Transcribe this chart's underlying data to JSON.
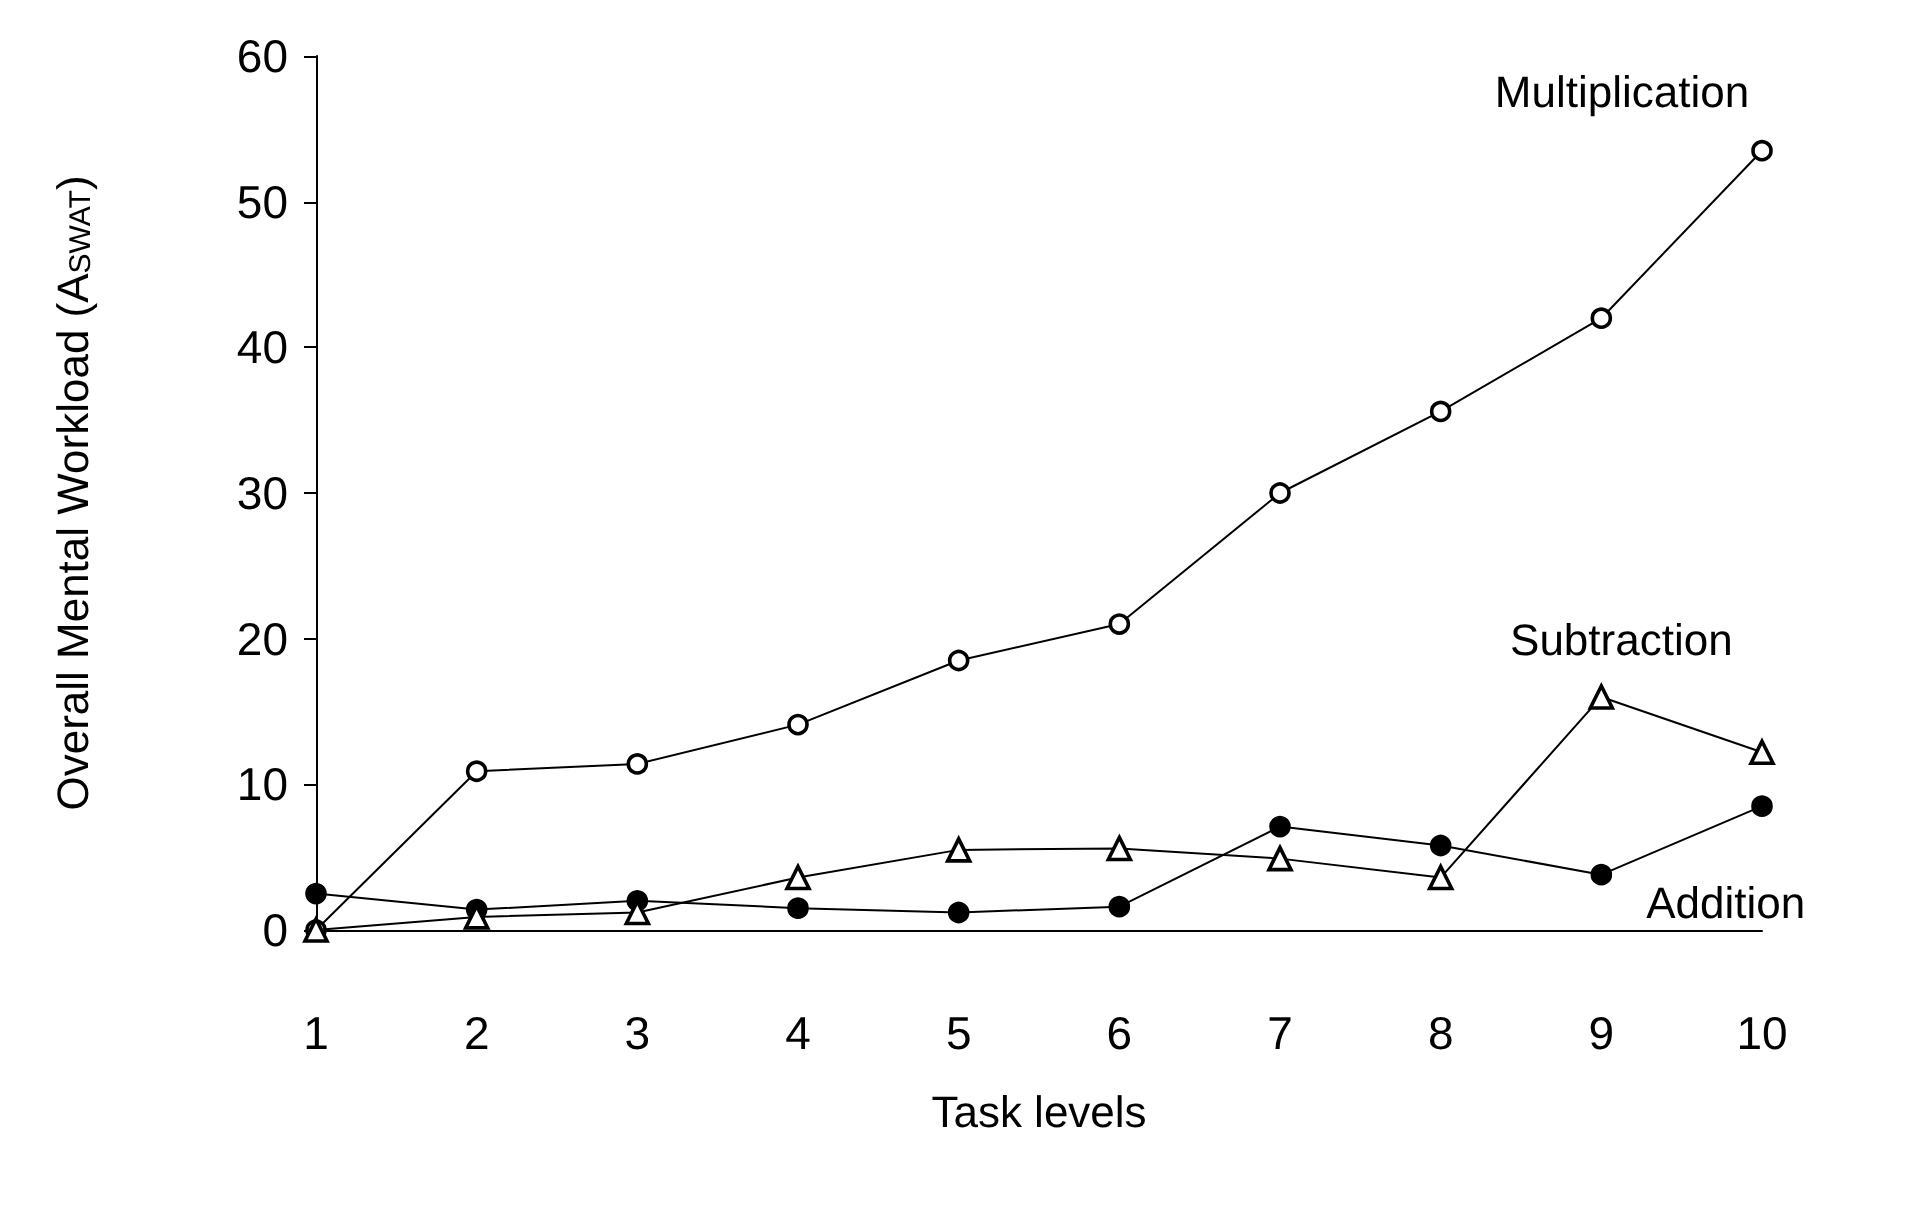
{
  "chart_data": {
    "type": "line",
    "xlabel": "Task levels",
    "ylabel": "Overall Mental Workload (A$_{SWAT}$)",
    "categories": [
      "1",
      "2",
      "3",
      "4",
      "5",
      "6",
      "7",
      "8",
      "9",
      "10"
    ],
    "ylim": [
      0,
      60
    ],
    "yticks": [
      0,
      10,
      20,
      30,
      40,
      50,
      60
    ],
    "grid": false,
    "legend": false,
    "line_style": "solid",
    "series": [
      {
        "name": "Multiplication",
        "color": "#000000",
        "marker": "circle",
        "values": [
          0,
          10.9,
          11.4,
          14.1,
          18.5,
          21,
          30,
          35.6,
          42,
          53.5
        ]
      },
      {
        "name": "Subtraction",
        "color": "#000000",
        "marker": "triangle",
        "values": [
          0,
          0.9,
          1.2,
          3.6,
          5.5,
          5.6,
          4.9,
          3.6,
          16,
          12.2
        ]
      },
      {
        "name": "Addition",
        "color": "#000000",
        "marker": "circle",
        "values": [
          2.5,
          1.4,
          2,
          1.5,
          1.2,
          1.6,
          7.1,
          5.8,
          3.8,
          8.5
        ]
      }
    ]
  }
}
